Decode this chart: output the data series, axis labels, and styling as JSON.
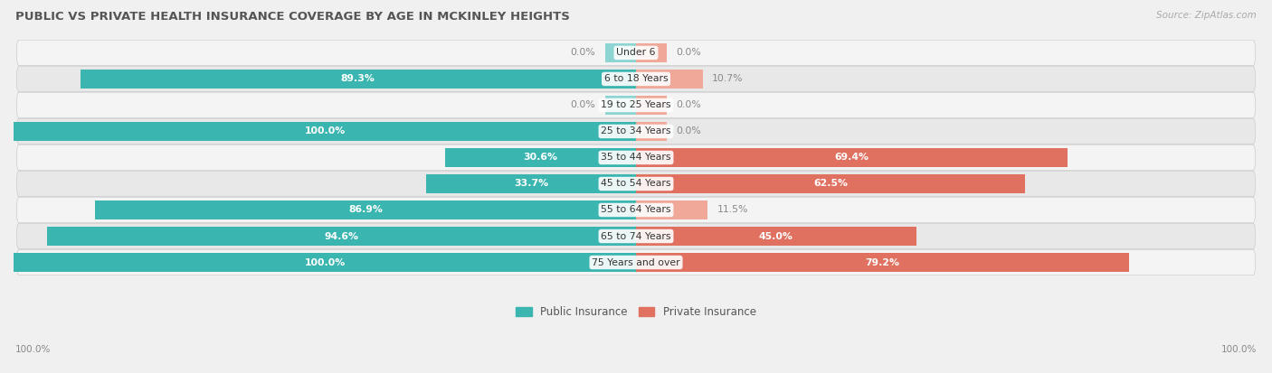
{
  "title": "PUBLIC VS PRIVATE HEALTH INSURANCE COVERAGE BY AGE IN MCKINLEY HEIGHTS",
  "source": "Source: ZipAtlas.com",
  "categories": [
    "Under 6",
    "6 to 18 Years",
    "19 to 25 Years",
    "25 to 34 Years",
    "35 to 44 Years",
    "45 to 54 Years",
    "55 to 64 Years",
    "65 to 74 Years",
    "75 Years and over"
  ],
  "public_values": [
    0.0,
    89.3,
    0.0,
    100.0,
    30.6,
    33.7,
    86.9,
    94.6,
    100.0
  ],
  "private_values": [
    0.0,
    10.7,
    0.0,
    0.0,
    69.4,
    62.5,
    11.5,
    45.0,
    79.2
  ],
  "public_color_strong": "#3ab5b0",
  "public_color_light": "#8dd5d2",
  "private_color_strong": "#e07060",
  "private_color_light": "#f0a898",
  "public_label": "Public Insurance",
  "private_label": "Private Insurance",
  "row_bg_light": "#f4f4f4",
  "row_bg_dark": "#e8e8e8",
  "title_color": "#555555",
  "value_text_color_inside": "#ffffff",
  "value_text_color_outside": "#888888",
  "max_value": 100.0,
  "bar_height": 0.72,
  "fig_bg_color": "#f0f0f0",
  "stub_value": 5.0
}
